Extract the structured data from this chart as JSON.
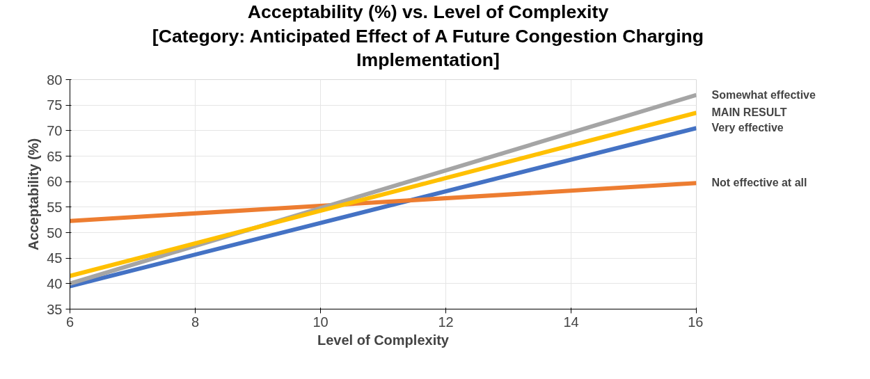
{
  "chart_data": {
    "type": "line",
    "title": "Acceptability (%) vs. Level of Complexity\n[Category: Anticipated Effect of A Future Congestion Charging\nImplementation]",
    "xlabel": "Level of Complexity",
    "ylabel": "Acceptability (%)",
    "x": [
      6,
      16
    ],
    "series": [
      {
        "name": "Very effective",
        "color": "#4472c4",
        "values": [
          39.5,
          70.5
        ]
      },
      {
        "name": "Not effective at all",
        "color": "#ed7d31",
        "values": [
          52.3,
          59.7
        ]
      },
      {
        "name": "Somewhat effective",
        "color": "#a5a5a5",
        "values": [
          40,
          77
        ]
      },
      {
        "name": "MAIN RESULT",
        "color": "#ffc000",
        "values": [
          41.5,
          73.5
        ]
      }
    ],
    "xlim": [
      6,
      16
    ],
    "xticks": [
      6,
      8,
      10,
      12,
      14,
      16
    ],
    "ylim": [
      35,
      80
    ],
    "yticks": [
      35,
      40,
      45,
      50,
      55,
      60,
      65,
      70,
      75,
      80
    ],
    "grid": true,
    "marker": "none",
    "line_style": "solid"
  }
}
